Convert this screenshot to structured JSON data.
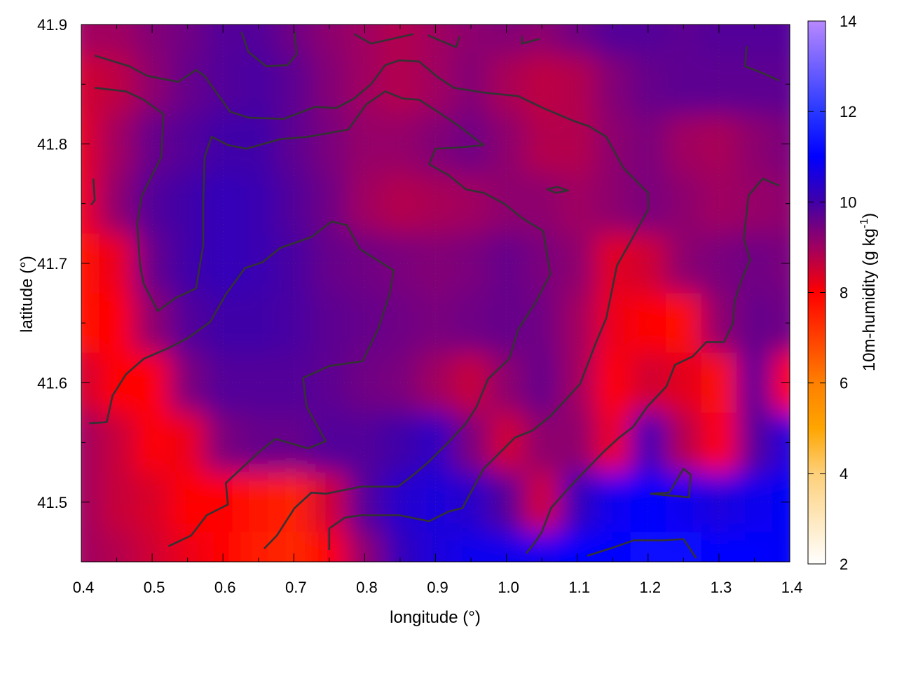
{
  "chart_data": {
    "type": "heatmap",
    "title": "",
    "xlabel": "longitude (°)",
    "ylabel": "latitude (°)",
    "xlim": [
      0.4,
      1.4
    ],
    "ylim": [
      41.45,
      41.9
    ],
    "xticks": [
      "0.4",
      "0.5",
      "0.6",
      "0.7",
      "0.8",
      "0.9",
      "1.0",
      "1.1",
      "1.2",
      "1.3",
      "1.4"
    ],
    "yticks": [
      "41.5",
      "41.6",
      "41.7",
      "41.8",
      "41.9"
    ],
    "grid": true,
    "colorbar": {
      "label": "10m-humidity (g kg",
      "label_sup": "-1",
      "label_end": ")",
      "range": [
        2,
        14
      ],
      "ticks": [
        "2",
        "4",
        "6",
        "8",
        "10",
        "12",
        "14"
      ],
      "colormap": [
        {
          "v": 2,
          "c": "#ffffff"
        },
        {
          "v": 4,
          "c": "#fdd07a"
        },
        {
          "v": 5,
          "c": "#ffa500"
        },
        {
          "v": 6,
          "c": "#ff8000"
        },
        {
          "v": 7,
          "c": "#ff4000"
        },
        {
          "v": 8,
          "c": "#ff0000"
        },
        {
          "v": 9,
          "c": "#a00060"
        },
        {
          "v": 10,
          "c": "#4000a8"
        },
        {
          "v": 11,
          "c": "#0000ff"
        },
        {
          "v": 12,
          "c": "#2838ff"
        },
        {
          "v": 14,
          "c": "#b888ff"
        }
      ]
    },
    "grid_lon": [
      0.4,
      0.45,
      0.5,
      0.55,
      0.6,
      0.65,
      0.7,
      0.75,
      0.8,
      0.85,
      0.9,
      0.95,
      1.0,
      1.05,
      1.1,
      1.15,
      1.2,
      1.25,
      1.3,
      1.35,
      1.4
    ],
    "grid_lat": [
      41.9,
      41.85,
      41.8,
      41.75,
      41.7,
      41.65,
      41.6,
      41.55,
      41.5,
      41.45
    ],
    "values": [
      [
        9.0,
        9.0,
        9.3,
        9.5,
        9.8,
        9.8,
        9.5,
        9.2,
        9.0,
        8.8,
        9.0,
        9.2,
        9.3,
        9.2,
        9.5,
        9.8,
        9.8,
        9.7,
        9.8,
        9.8,
        9.8
      ],
      [
        8.5,
        8.7,
        9.2,
        9.6,
        9.8,
        9.9,
        9.7,
        9.3,
        9.0,
        8.8,
        9.0,
        9.3,
        8.9,
        8.7,
        8.8,
        9.3,
        9.6,
        9.7,
        9.7,
        9.7,
        9.7
      ],
      [
        8.3,
        9.0,
        9.6,
        9.8,
        10.0,
        10.0,
        9.7,
        9.4,
        9.1,
        9.1,
        9.3,
        9.5,
        9.2,
        8.8,
        8.8,
        9.2,
        9.4,
        9.0,
        8.9,
        9.2,
        9.4
      ],
      [
        8.2,
        9.2,
        9.8,
        10.0,
        10.2,
        10.1,
        9.8,
        9.5,
        9.0,
        8.8,
        8.9,
        9.0,
        9.2,
        9.2,
        9.0,
        9.2,
        9.4,
        9.2,
        9.0,
        9.1,
        9.2
      ],
      [
        7.8,
        8.2,
        9.6,
        10.0,
        10.2,
        10.1,
        9.9,
        9.6,
        9.5,
        9.4,
        9.3,
        9.4,
        9.6,
        9.4,
        9.2,
        8.3,
        8.5,
        9.2,
        9.4,
        9.5,
        9.4
      ],
      [
        7.8,
        7.9,
        9.2,
        9.8,
        10.0,
        10.0,
        9.9,
        9.7,
        9.6,
        9.5,
        9.4,
        9.5,
        9.6,
        9.5,
        9.0,
        8.2,
        8.0,
        7.8,
        9.2,
        9.6,
        9.5
      ],
      [
        8.5,
        7.9,
        8.0,
        9.4,
        9.8,
        9.8,
        9.8,
        9.7,
        9.5,
        9.4,
        9.0,
        8.6,
        9.2,
        9.6,
        9.0,
        8.0,
        8.5,
        8.3,
        7.8,
        9.8,
        8.0
      ],
      [
        9.0,
        8.6,
        7.9,
        8.2,
        9.4,
        9.6,
        9.6,
        9.8,
        9.8,
        10.0,
        10.3,
        9.4,
        8.5,
        9.2,
        9.2,
        8.2,
        10.2,
        8.8,
        8.0,
        9.8,
        10.6
      ],
      [
        9.0,
        8.6,
        8.4,
        8.0,
        7.9,
        7.7,
        7.5,
        8.5,
        9.8,
        10.4,
        10.6,
        10.4,
        9.8,
        8.5,
        10.2,
        10.8,
        11.0,
        10.8,
        10.6,
        10.8,
        10.9
      ],
      [
        9.0,
        8.8,
        8.5,
        8.2,
        7.9,
        7.6,
        7.4,
        8.0,
        9.2,
        10.2,
        10.6,
        10.8,
        10.8,
        10.8,
        11.0,
        11.0,
        11.2,
        11.2,
        11.0,
        11.0,
        10.9
      ]
    ],
    "contours": [
      [
        [
          0.411,
          41.566
        ],
        [
          0.436,
          41.567
        ],
        [
          0.444,
          41.589
        ],
        [
          0.463,
          41.607
        ],
        [
          0.488,
          41.62
        ],
        [
          0.523,
          41.629
        ],
        [
          0.552,
          41.638
        ],
        [
          0.582,
          41.651
        ],
        [
          0.604,
          41.674
        ],
        [
          0.631,
          41.696
        ],
        [
          0.656,
          41.701
        ],
        [
          0.681,
          41.713
        ],
        [
          0.725,
          41.722
        ],
        [
          0.753,
          41.735
        ],
        [
          0.775,
          41.732
        ],
        [
          0.793,
          41.712
        ],
        [
          0.841,
          41.694
        ],
        [
          0.835,
          41.674
        ],
        [
          0.819,
          41.645
        ],
        [
          0.797,
          41.618
        ],
        [
          0.75,
          41.614
        ],
        [
          0.713,
          41.604
        ],
        [
          0.718,
          41.58
        ],
        [
          0.745,
          41.551
        ],
        [
          0.72,
          41.545
        ],
        [
          0.674,
          41.553
        ],
        [
          0.651,
          41.542
        ],
        [
          0.631,
          41.531
        ],
        [
          0.604,
          41.516
        ],
        [
          0.607,
          41.498
        ],
        [
          0.577,
          41.489
        ],
        [
          0.555,
          41.472
        ],
        [
          0.523,
          41.463
        ]
      ],
      [
        [
          0.419,
          41.847
        ],
        [
          0.463,
          41.844
        ],
        [
          0.488,
          41.837
        ],
        [
          0.516,
          41.825
        ],
        [
          0.513,
          41.789
        ],
        [
          0.495,
          41.768
        ],
        [
          0.485,
          41.756
        ],
        [
          0.479,
          41.733
        ],
        [
          0.483,
          41.698
        ],
        [
          0.488,
          41.683
        ],
        [
          0.508,
          41.66
        ],
        [
          0.533,
          41.671
        ],
        [
          0.562,
          41.679
        ],
        [
          0.572,
          41.715
        ],
        [
          0.572,
          41.75
        ],
        [
          0.574,
          41.789
        ],
        [
          0.584,
          41.806
        ],
        [
          0.607,
          41.799
        ],
        [
          0.633,
          41.796
        ],
        [
          0.681,
          41.804
        ],
        [
          0.72,
          41.806
        ],
        [
          0.777,
          41.812
        ],
        [
          0.802,
          41.833
        ],
        [
          0.829,
          41.844
        ],
        [
          0.854,
          41.838
        ],
        [
          0.877,
          41.837
        ],
        [
          0.903,
          41.827
        ],
        [
          0.933,
          41.815
        ],
        [
          0.968,
          41.799
        ],
        [
          0.933,
          41.797
        ],
        [
          0.9,
          41.796
        ],
        [
          0.891,
          41.783
        ],
        [
          0.918,
          41.774
        ],
        [
          0.943,
          41.762
        ],
        [
          0.968,
          41.759
        ],
        [
          0.997,
          41.75
        ],
        [
          1.022,
          41.738
        ],
        [
          1.052,
          41.727
        ],
        [
          1.062,
          41.691
        ],
        [
          1.042,
          41.668
        ],
        [
          1.017,
          41.645
        ],
        [
          1.004,
          41.62
        ],
        [
          0.974,
          41.603
        ],
        [
          0.958,
          41.58
        ],
        [
          0.943,
          41.566
        ],
        [
          0.918,
          41.55
        ],
        [
          0.889,
          41.533
        ],
        [
          0.867,
          41.522
        ],
        [
          0.847,
          41.513
        ],
        [
          0.795,
          41.513
        ],
        [
          0.745,
          41.507
        ],
        [
          0.725,
          41.508
        ],
        [
          0.701,
          41.495
        ],
        [
          0.676,
          41.472
        ],
        [
          0.658,
          41.461
        ]
      ],
      [
        [
          0.419,
          41.874
        ],
        [
          0.468,
          41.865
        ],
        [
          0.493,
          41.857
        ],
        [
          0.537,
          41.852
        ],
        [
          0.562,
          41.862
        ],
        [
          0.574,
          41.857
        ],
        [
          0.61,
          41.827
        ],
        [
          0.636,
          41.822
        ],
        [
          0.686,
          41.821
        ],
        [
          0.73,
          41.831
        ],
        [
          0.76,
          41.83
        ],
        [
          0.785,
          41.838
        ],
        [
          0.809,
          41.85
        ],
        [
          0.829,
          41.866
        ],
        [
          0.849,
          41.87
        ],
        [
          0.877,
          41.869
        ],
        [
          0.903,
          41.856
        ],
        [
          0.926,
          41.847
        ],
        [
          0.968,
          41.843
        ],
        [
          1.017,
          41.84
        ],
        [
          1.052,
          41.83
        ],
        [
          1.096,
          41.819
        ],
        [
          1.116,
          41.815
        ],
        [
          1.141,
          41.806
        ],
        [
          1.165,
          41.78
        ],
        [
          1.2,
          41.759
        ],
        [
          1.2,
          41.745
        ],
        [
          1.175,
          41.718
        ],
        [
          1.156,
          41.698
        ],
        [
          1.141,
          41.654
        ],
        [
          1.126,
          41.633
        ],
        [
          1.104,
          41.599
        ],
        [
          1.084,
          41.586
        ],
        [
          1.062,
          41.572
        ],
        [
          1.037,
          41.56
        ],
        [
          1.012,
          41.554
        ],
        [
          0.968,
          41.528
        ],
        [
          0.938,
          41.495
        ],
        [
          0.918,
          41.492
        ],
        [
          0.891,
          41.484
        ],
        [
          0.849,
          41.489
        ],
        [
          0.795,
          41.489
        ],
        [
          0.772,
          41.487
        ],
        [
          0.75,
          41.478
        ],
        [
          0.75,
          41.46
        ]
      ],
      [
        [
          1.339,
          41.882
        ],
        [
          1.337,
          41.865
        ],
        [
          1.363,
          41.859
        ],
        [
          1.385,
          41.853
        ]
      ],
      [
        [
          1.385,
          41.765
        ],
        [
          1.362,
          41.771
        ],
        [
          1.342,
          41.757
        ],
        [
          1.335,
          41.721
        ],
        [
          1.344,
          41.703
        ],
        [
          1.332,
          41.686
        ],
        [
          1.322,
          41.668
        ],
        [
          1.32,
          41.65
        ],
        [
          1.307,
          41.634
        ],
        [
          1.282,
          41.634
        ],
        [
          1.263,
          41.622
        ],
        [
          1.238,
          41.615
        ],
        [
          1.226,
          41.597
        ],
        [
          1.199,
          41.58
        ],
        [
          1.179,
          41.563
        ],
        [
          1.159,
          41.554
        ],
        [
          1.137,
          41.542
        ],
        [
          1.114,
          41.528
        ],
        [
          1.09,
          41.513
        ],
        [
          1.063,
          41.495
        ],
        [
          1.05,
          41.475
        ],
        [
          1.04,
          41.466
        ],
        [
          1.028,
          41.457
        ]
      ],
      [
        [
          1.114,
          41.455
        ],
        [
          1.151,
          41.462
        ],
        [
          1.18,
          41.468
        ],
        [
          1.22,
          41.468
        ],
        [
          1.25,
          41.469
        ],
        [
          1.268,
          41.453
        ]
      ],
      [
        [
          1.203,
          41.507
        ],
        [
          1.23,
          41.508
        ],
        [
          1.25,
          41.528
        ],
        [
          1.26,
          41.523
        ],
        [
          1.258,
          41.504
        ],
        [
          1.203,
          41.507
        ]
      ],
      [
        [
          0.626,
          41.894
        ],
        [
          0.636,
          41.877
        ],
        [
          0.661,
          41.865
        ],
        [
          0.691,
          41.866
        ],
        [
          0.704,
          41.875
        ],
        [
          0.701,
          41.894
        ]
      ],
      [
        [
          0.417,
          41.771
        ],
        [
          0.419,
          41.753
        ],
        [
          0.414,
          41.749
        ]
      ],
      [
        [
          0.785,
          41.892
        ],
        [
          0.809,
          41.884
        ],
        [
          0.869,
          41.892
        ]
      ],
      [
        [
          0.889,
          41.891
        ],
        [
          0.929,
          41.881
        ],
        [
          0.934,
          41.89
        ]
      ],
      [
        [
          1.022,
          41.89
        ],
        [
          1.022,
          41.884
        ],
        [
          1.047,
          41.888
        ]
      ],
      [
        [
          1.057,
          41.762
        ],
        [
          1.072,
          41.764
        ],
        [
          1.087,
          41.761
        ],
        [
          1.07,
          41.759
        ],
        [
          1.057,
          41.762
        ]
      ]
    ],
    "contour_color": "#333333"
  }
}
